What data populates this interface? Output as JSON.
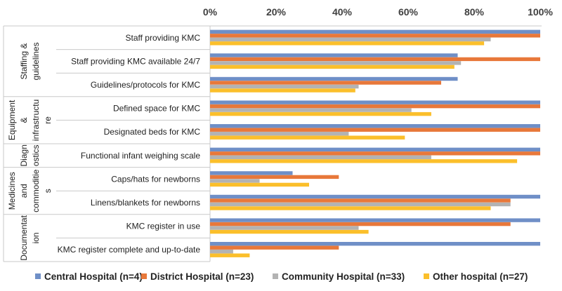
{
  "chart_data": {
    "type": "bar",
    "orientation": "horizontal",
    "title": "",
    "xlabel": "",
    "ylabel": "",
    "xlim": [
      0,
      100
    ],
    "grid": false,
    "legend": "bottom",
    "tick_labels": [
      "0%",
      "20%",
      "40%",
      "60%",
      "80%",
      "100%"
    ],
    "groups": [
      {
        "lines": [
          "Staffing &",
          "guidelines"
        ],
        "categories": [
          "Staff providing KMC",
          "Staff providing KMC available 24/7",
          "Guidelines/protocols for KMC"
        ]
      },
      {
        "lines": [
          "Equipment",
          "&",
          "infrastructu",
          "re"
        ],
        "categories": [
          "Defined space for KMC",
          "Designated beds for KMC"
        ]
      },
      {
        "lines": [
          "Diagn",
          "ostics"
        ],
        "categories": [
          "Functional infant weighing scale"
        ]
      },
      {
        "lines": [
          "Medicines",
          "and",
          "commoditie",
          "s"
        ],
        "categories": [
          "Caps/hats for newborns",
          "Linens/blankets for newborns"
        ]
      },
      {
        "lines": [
          "Documentat",
          "ion"
        ],
        "categories": [
          "KMC register in use",
          "KMC register complete and up-to-date"
        ]
      }
    ],
    "categories": [
      "Staff providing KMC",
      "Staff providing KMC available 24/7",
      "Guidelines/protocols for KMC",
      "Defined space for KMC",
      "Designated beds for KMC",
      "Functional infant weighing scale",
      "Caps/hats for newborns",
      "Linens/blankets for newborns",
      "KMC register in use",
      "KMC register complete and up-to-date"
    ],
    "series": [
      {
        "name": "Central Hospital (n=4)",
        "color": "#6f8fc7",
        "values": [
          100,
          75,
          75,
          100,
          100,
          100,
          25,
          100,
          100,
          100
        ]
      },
      {
        "name": "District Hospital (n=23)",
        "color": "#e8783a",
        "values": [
          100,
          100,
          70,
          100,
          100,
          100,
          39,
          91,
          91,
          39
        ]
      },
      {
        "name": "Community Hospital (n=33)",
        "color": "#b3b3b3",
        "values": [
          85,
          76,
          45,
          61,
          42,
          67,
          15,
          91,
          45,
          7
        ]
      },
      {
        "name": "Other hospital (n=27)",
        "color": "#fbbf2b",
        "values": [
          83,
          74,
          44,
          67,
          59,
          93,
          30,
          85,
          48,
          12
        ]
      }
    ]
  }
}
